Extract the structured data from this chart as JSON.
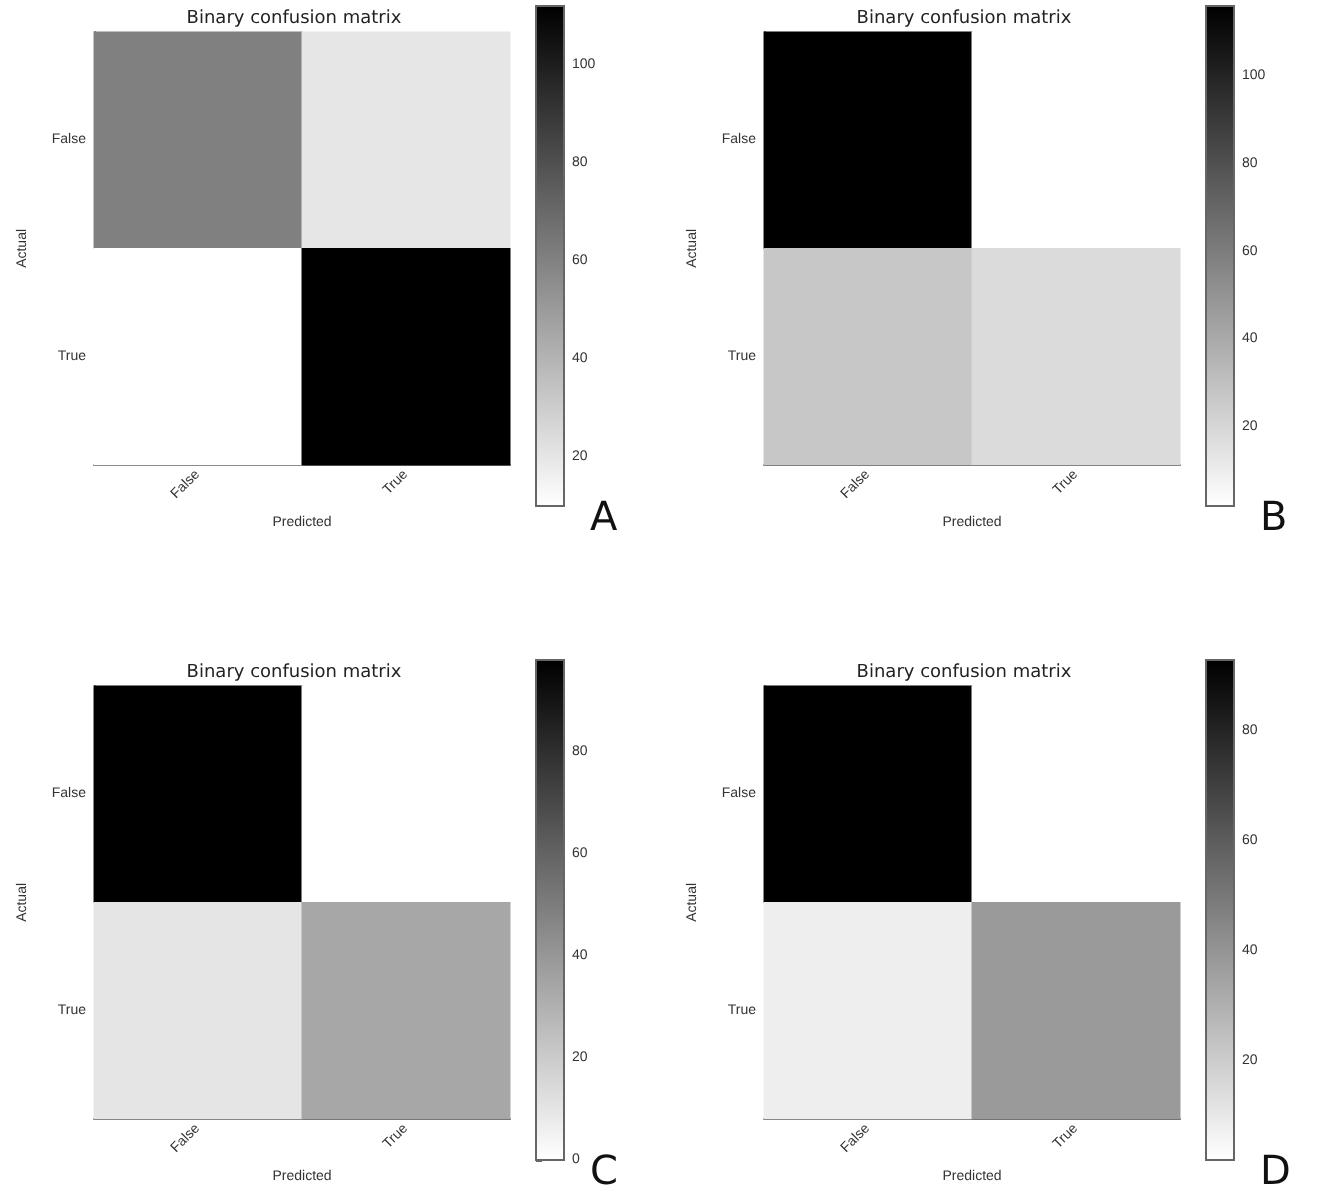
{
  "chart_data": [
    {
      "type": "heatmap",
      "title": "Binary confusion matrix",
      "xlabel": "Predicted",
      "ylabel": "Actual",
      "categories": [
        "False",
        "True"
      ],
      "y_categories": [
        "False",
        "True"
      ],
      "cells": [
        [
          61,
          20
        ],
        [
          10,
          112
        ]
      ],
      "clim": [
        10,
        112
      ],
      "cticks": [
        20,
        40,
        60,
        80,
        100
      ],
      "annotations": [
        "A"
      ]
    },
    {
      "type": "heatmap",
      "title": "Binary confusion matrix",
      "xlabel": "Predicted",
      "ylabel": "Actual",
      "categories": [
        "False",
        "True"
      ],
      "y_categories": [
        "False",
        "True"
      ],
      "cells": [
        [
          116,
          2
        ],
        [
          27,
          18
        ]
      ],
      "clim": [
        2,
        116
      ],
      "cticks": [
        20,
        40,
        60,
        80,
        100
      ],
      "annotations": [
        "B"
      ]
    },
    {
      "type": "heatmap",
      "title": "Binary confusion matrix",
      "xlabel": "Predicted",
      "ylabel": "Actual",
      "categories": [
        "False",
        "True"
      ],
      "y_categories": [
        "False",
        "True"
      ],
      "cells": [
        [
          98,
          0
        ],
        [
          10,
          34
        ]
      ],
      "clim": [
        0,
        98
      ],
      "cticks": [
        0,
        20,
        40,
        60,
        80
      ],
      "annotations": [
        "C"
      ]
    },
    {
      "type": "heatmap",
      "title": "Binary confusion matrix",
      "xlabel": "Predicted",
      "ylabel": "Actual",
      "categories": [
        "False",
        "True"
      ],
      "y_categories": [
        "False",
        "True"
      ],
      "cells": [
        [
          93,
          2
        ],
        [
          8,
          38
        ]
      ],
      "clim": [
        2,
        93
      ],
      "cticks": [
        20,
        40,
        60,
        80
      ],
      "annotations": [
        "D"
      ]
    }
  ]
}
